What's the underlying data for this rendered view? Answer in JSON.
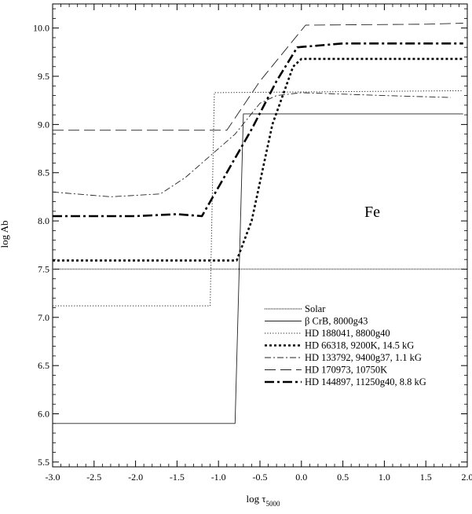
{
  "chart_data": {
    "type": "line",
    "title": "",
    "element_label": "Fe",
    "xlabel": {
      "main": "log τ",
      "sub": "5000"
    },
    "ylabel": "log Ab",
    "xlim": [
      -3.0,
      2.0
    ],
    "ylim": [
      5.45,
      10.25
    ],
    "xticks": [
      "-3.0",
      "-2.5",
      "-2.0",
      "-1.5",
      "-1.0",
      "-0.5",
      "0.0",
      "0.5",
      "1.0",
      "1.5",
      "2.0"
    ],
    "yticks": [
      "5.5",
      "6.0",
      "6.5",
      "7.0",
      "7.5",
      "8.0",
      "8.5",
      "9.0",
      "9.5",
      "10.0"
    ],
    "grid": false,
    "legend_position": "lower-right",
    "series": [
      {
        "name": "Solar",
        "style": "solar",
        "points": [
          [
            -3.0,
            7.5
          ],
          [
            1.95,
            7.5
          ]
        ]
      },
      {
        "name": "β CrB, 8000g43",
        "style": "thin-solid",
        "points": [
          [
            -3.0,
            5.9
          ],
          [
            -0.8,
            5.9
          ],
          [
            -0.7,
            9.11
          ],
          [
            1.95,
            9.11
          ]
        ]
      },
      {
        "name": "HD 188041, 8800g40",
        "style": "thin-dotted",
        "points": [
          [
            -3.0,
            7.12
          ],
          [
            -1.1,
            7.12
          ],
          [
            -1.05,
            9.33
          ],
          [
            1.95,
            9.35
          ]
        ]
      },
      {
        "name": "HD 66318, 9200K, 14.5 kG",
        "style": "thick-dotted",
        "points": [
          [
            -3.0,
            7.59
          ],
          [
            -0.78,
            7.59
          ],
          [
            -0.6,
            8.0
          ],
          [
            -0.35,
            9.0
          ],
          [
            -0.1,
            9.6
          ],
          [
            0.0,
            9.68
          ],
          [
            1.95,
            9.68
          ]
        ]
      },
      {
        "name": "HD 133792, 9400g37, 1.1 kG",
        "style": "dash-dot",
        "points": [
          [
            -3.0,
            8.3
          ],
          [
            -2.3,
            8.25
          ],
          [
            -1.7,
            8.28
          ],
          [
            -1.4,
            8.45
          ],
          [
            -1.0,
            8.75
          ],
          [
            -0.8,
            8.9
          ],
          [
            -0.5,
            9.22
          ],
          [
            -0.3,
            9.3
          ],
          [
            0.0,
            9.33
          ],
          [
            1.0,
            9.3
          ],
          [
            1.8,
            9.28
          ]
        ]
      },
      {
        "name": "HD 170973,  10750K",
        "style": "dashed",
        "points": [
          [
            -3.0,
            8.94
          ],
          [
            -0.9,
            8.94
          ],
          [
            -0.5,
            9.45
          ],
          [
            0.05,
            10.03
          ],
          [
            1.5,
            10.04
          ],
          [
            1.95,
            10.05
          ]
        ]
      },
      {
        "name": "HD 144897, 11250g40, 8.8 kG",
        "style": "thick-dash-dot",
        "points": [
          [
            -3.0,
            8.05
          ],
          [
            -2.0,
            8.05
          ],
          [
            -1.5,
            8.07
          ],
          [
            -1.2,
            8.05
          ],
          [
            -1.0,
            8.35
          ],
          [
            -0.6,
            8.95
          ],
          [
            -0.3,
            9.45
          ],
          [
            -0.05,
            9.8
          ],
          [
            0.5,
            9.84
          ],
          [
            1.95,
            9.84
          ]
        ]
      }
    ]
  }
}
